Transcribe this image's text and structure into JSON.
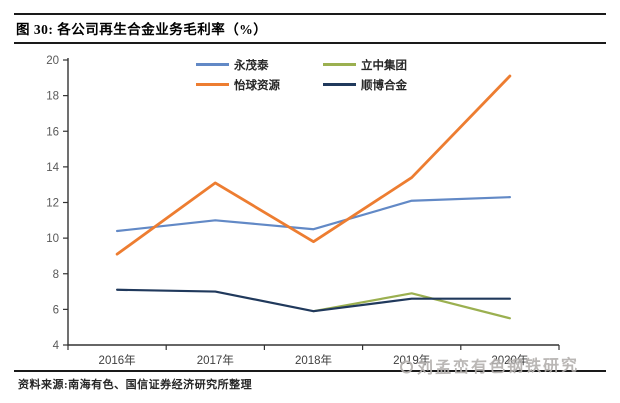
{
  "figure": {
    "title": "图 30: 各公司再生合金业务毛利率（%）",
    "source": "资料来源:南海有色、国信证券经济研究所整理",
    "watermark": "刘孟峦有色钢铁研究"
  },
  "chart_data": {
    "type": "line",
    "title": "各公司再生合金业务毛利率（%）",
    "categories": [
      "2016年",
      "2017年",
      "2018年",
      "2019年",
      "2020年"
    ],
    "series": [
      {
        "name": "永茂泰",
        "color": "#6289C6",
        "stroke_width": 2.2,
        "values": [
          10.4,
          11.0,
          10.5,
          12.1,
          12.3
        ]
      },
      {
        "name": "怡球资源",
        "color": "#ED7D31",
        "stroke_width": 2.8,
        "values": [
          9.1,
          13.1,
          9.8,
          13.4,
          19.1
        ]
      },
      {
        "name": "立中集团",
        "color": "#9BB050",
        "stroke_width": 2.2,
        "values": [
          null,
          null,
          5.9,
          6.9,
          5.5
        ]
      },
      {
        "name": "顺博合金",
        "color": "#20395C",
        "stroke_width": 2.2,
        "values": [
          7.1,
          7.0,
          5.9,
          6.6,
          6.6
        ]
      }
    ],
    "xlabel": "",
    "ylabel": "",
    "ylim": [
      4,
      20
    ],
    "ytick_step": 2,
    "grid": false,
    "legend_position": "top",
    "legend_row_major_order": [
      "永茂泰",
      "立中集团",
      "怡球资源",
      "顺博合金"
    ],
    "axis_color": "#333333",
    "tick_label_color": "#595959"
  }
}
